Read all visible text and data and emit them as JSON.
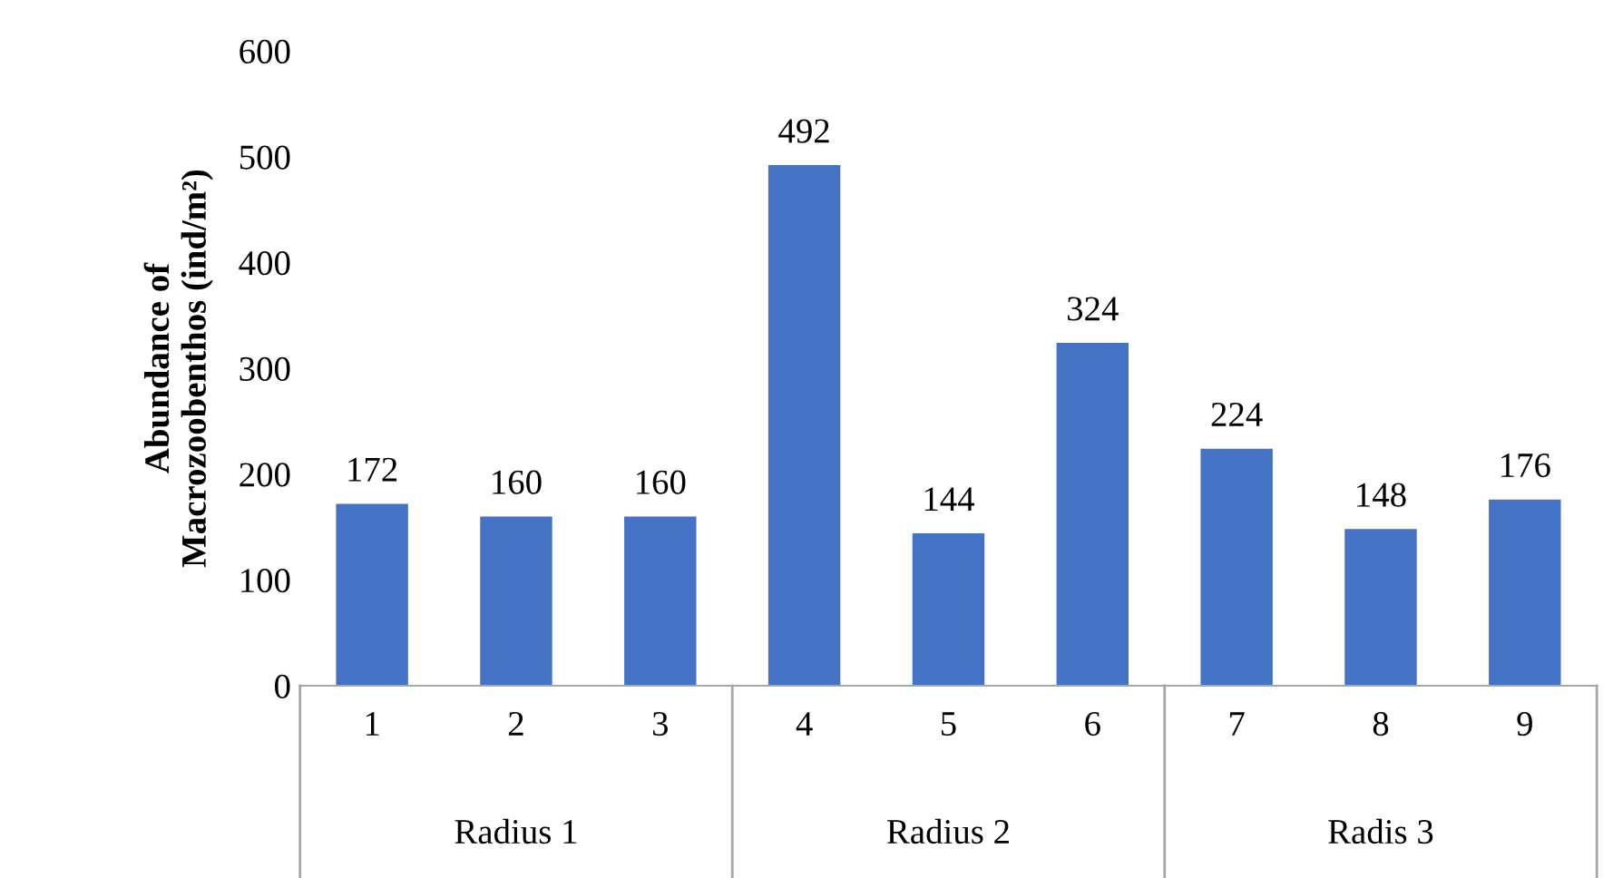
{
  "chart_data": {
    "type": "bar",
    "ylabel": "Abundance of\nMacrozoobenthos (ind/m²)",
    "categories": [
      "1",
      "2",
      "3",
      "4",
      "5",
      "6",
      "7",
      "8",
      "9"
    ],
    "values": [
      172,
      160,
      160,
      492,
      144,
      324,
      224,
      148,
      176
    ],
    "color": "#4472c4",
    "ylim": [
      0,
      600
    ],
    "yticks": [
      0,
      100,
      200,
      300,
      400,
      500,
      600
    ],
    "data_labels": true,
    "grid": false,
    "annotations": [
      "Radius 1",
      "Radius 2",
      "Radis 3"
    ]
  }
}
